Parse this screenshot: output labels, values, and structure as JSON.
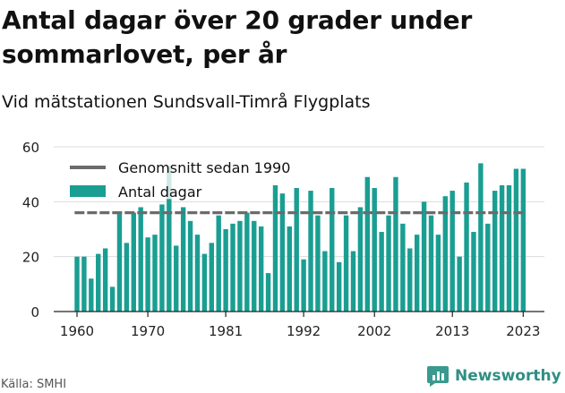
{
  "title": "Antal dagar över 20 grader under sommarlovet, per år",
  "subtitle": "Vid mätstationen Sundsvall-Timrå Flygplats",
  "source": "Källa: SMHI",
  "brand": "Newsworthy",
  "colors": {
    "bar": "#1a9e92",
    "bar_light": "#cfeae6",
    "average": "#6b6b6b",
    "grid": "#dcdcdc",
    "brand": "#2f8f83"
  },
  "chart_data": {
    "type": "bar",
    "x_ticks": [
      "1960",
      "1970",
      "1981",
      "1992",
      "2002",
      "2013",
      "2023"
    ],
    "y_ticks": [
      0,
      20,
      40,
      60
    ],
    "ylim": [
      0,
      60
    ],
    "legend": [
      "Genomsnitt sedan 1990",
      "Antal dagar"
    ],
    "legend_position": "top-left",
    "average": 36,
    "years": [
      1960,
      1961,
      1962,
      1963,
      1964,
      1965,
      1966,
      1967,
      1968,
      1969,
      1970,
      1971,
      1972,
      1973,
      1974,
      1975,
      1976,
      1977,
      1978,
      1979,
      1980,
      1981,
      1982,
      1983,
      1984,
      1985,
      1986,
      1987,
      1988,
      1989,
      1990,
      1991,
      1992,
      1993,
      1994,
      1995,
      1996,
      1997,
      1998,
      1999,
      2000,
      2001,
      2002,
      2003,
      2004,
      2005,
      2006,
      2007,
      2008,
      2009,
      2010,
      2011,
      2012,
      2013,
      2014,
      2015,
      2016,
      2017,
      2018,
      2019,
      2020,
      2021,
      2022,
      2023
    ],
    "values": [
      20,
      20,
      12,
      21,
      23,
      9,
      36,
      25,
      36,
      38,
      27,
      28,
      39,
      41,
      24,
      38,
      33,
      28,
      21,
      25,
      35,
      30,
      32,
      33,
      36,
      33,
      31,
      14,
      46,
      43,
      31,
      45,
      19,
      44,
      35,
      22,
      45,
      18,
      35,
      22,
      38,
      49,
      45,
      29,
      35,
      49,
      32,
      23,
      28,
      40,
      35,
      28,
      42,
      44,
      20,
      47,
      29,
      54,
      32,
      44,
      46,
      46,
      52,
      52
    ],
    "highlighted_values": [
      null,
      null,
      null,
      null,
      null,
      null,
      null,
      null,
      null,
      null,
      null,
      null,
      39,
      53,
      null,
      null,
      null,
      null,
      null,
      null,
      null,
      null,
      null,
      null,
      null,
      null,
      null,
      null,
      38,
      38,
      null,
      38,
      null,
      null,
      null,
      null,
      null,
      null,
      null,
      null,
      null,
      null,
      null,
      null,
      null,
      null,
      null,
      null,
      null,
      null,
      null,
      null,
      null,
      null,
      null,
      null,
      null,
      null,
      null,
      null,
      null,
      null,
      null,
      null
    ]
  }
}
